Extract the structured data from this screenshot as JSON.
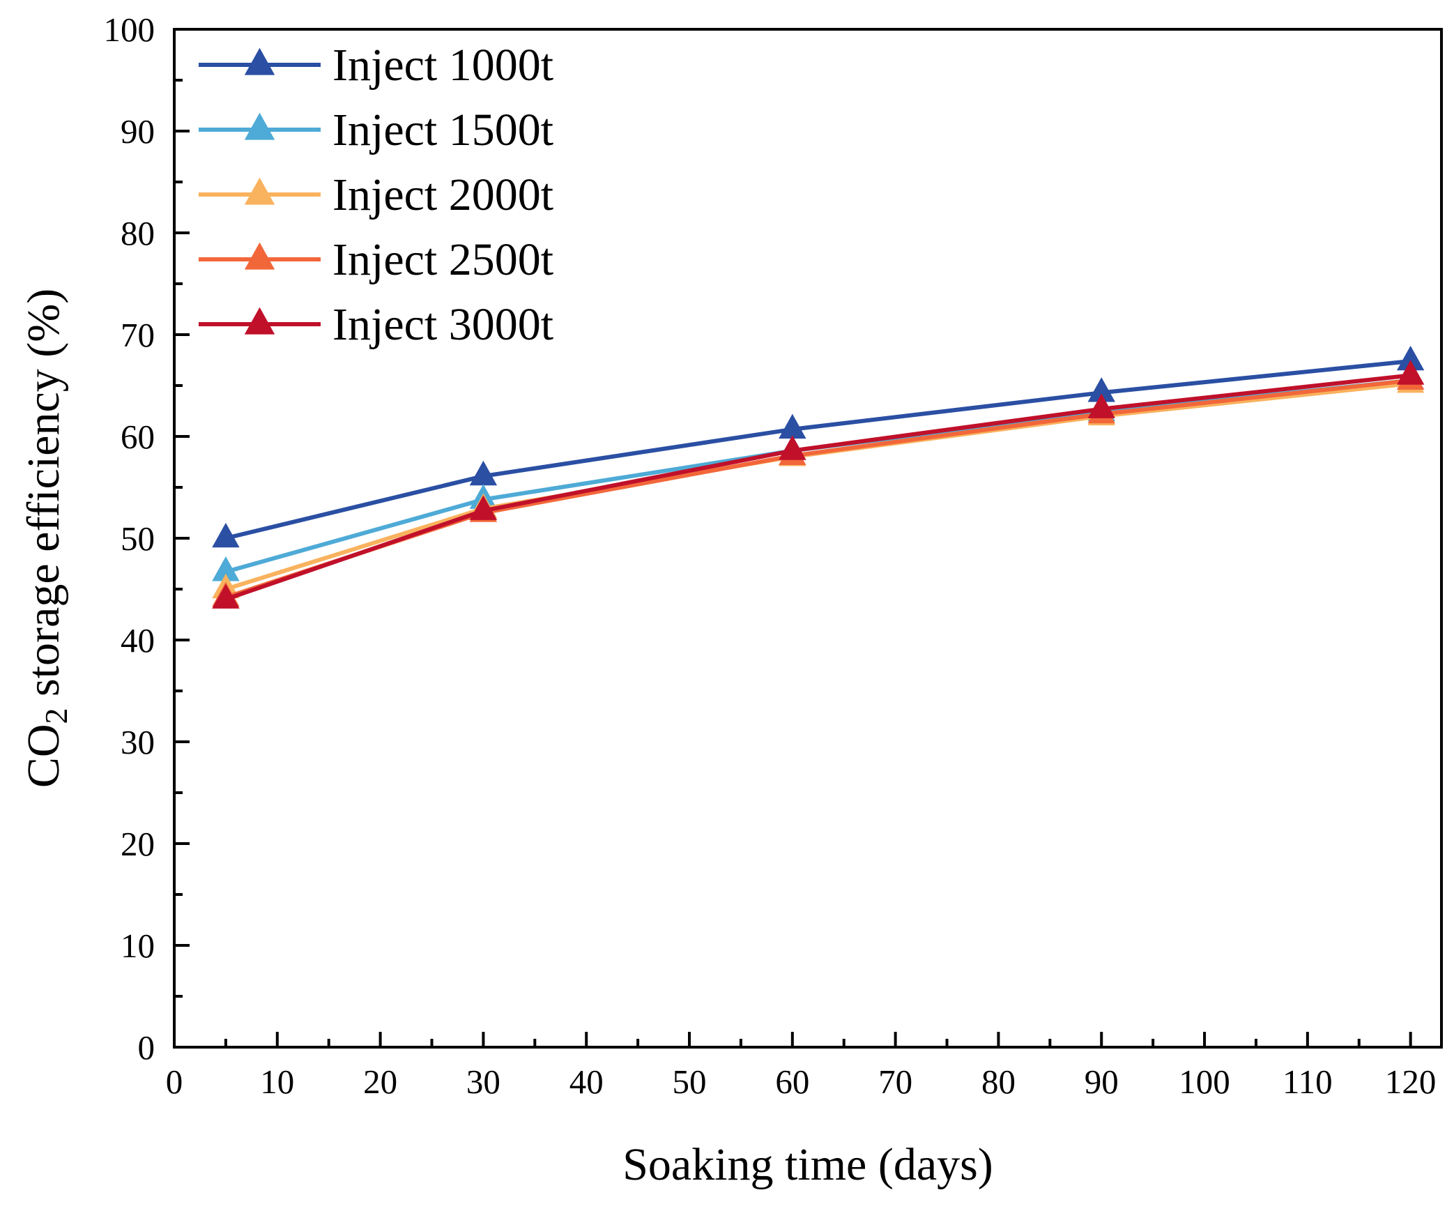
{
  "chart_data": {
    "type": "line",
    "title": "",
    "xlabel": "Soaking time (days)",
    "ylabel_parts": {
      "prefix": "CO",
      "subscript": "2",
      "suffix": " storage efficiency (%)"
    },
    "xlim": [
      0,
      123
    ],
    "ylim": [
      0,
      100
    ],
    "xticks": [
      0,
      10,
      20,
      30,
      40,
      50,
      60,
      70,
      80,
      90,
      100,
      110,
      120
    ],
    "yticks": [
      0,
      10,
      20,
      30,
      40,
      50,
      60,
      70,
      80,
      90,
      100
    ],
    "grid": false,
    "legend_position": "top-left",
    "x": [
      5,
      30,
      60,
      90,
      120
    ],
    "series": [
      {
        "name": "Inject 1000t",
        "color": "#2a4fa3",
        "marker": "triangle-up",
        "values": [
          50.0,
          56.1,
          60.7,
          64.3,
          67.4
        ]
      },
      {
        "name": "Inject 1500t",
        "color": "#4eaad6",
        "marker": "triangle-up",
        "values": [
          46.7,
          53.8,
          58.6,
          62.4,
          65.5
        ]
      },
      {
        "name": "Inject 2000t",
        "color": "#f9b25e",
        "marker": "triangle-up",
        "values": [
          45.0,
          52.9,
          58.0,
          62.0,
          65.2
        ]
      },
      {
        "name": "Inject 2500t",
        "color": "#f2673a",
        "marker": "triangle-up",
        "values": [
          44.2,
          52.5,
          58.1,
          62.2,
          65.5
        ]
      },
      {
        "name": "Inject 3000t",
        "color": "#c0102a",
        "marker": "triangle-up",
        "values": [
          44.0,
          52.7,
          58.6,
          62.7,
          66.0
        ]
      }
    ]
  }
}
